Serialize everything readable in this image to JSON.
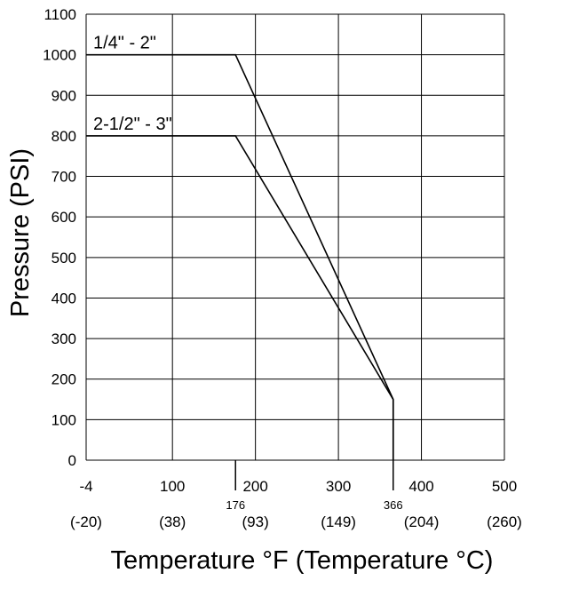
{
  "chart_data": {
    "type": "line",
    "xlabel": "Temperature °F (Temperature °C)",
    "ylabel": "Pressure (PSI)",
    "xlim": [
      -4,
      500
    ],
    "ylim": [
      0,
      1100
    ],
    "grid": true,
    "x_ticks": [
      {
        "value": -4,
        "label": "-4",
        "sub": "(-20)"
      },
      {
        "value": 100,
        "label": "100",
        "sub": "(38)"
      },
      {
        "value": 200,
        "label": "200",
        "sub": "(93)"
      },
      {
        "value": 300,
        "label": "300",
        "sub": "(149)"
      },
      {
        "value": 400,
        "label": "400",
        "sub": "(204)"
      },
      {
        "value": 500,
        "label": "500",
        "sub": "(260)"
      }
    ],
    "y_ticks": [
      {
        "value": 0,
        "label": "0"
      },
      {
        "value": 100,
        "label": "100"
      },
      {
        "value": 200,
        "label": "200"
      },
      {
        "value": 300,
        "label": "300"
      },
      {
        "value": 400,
        "label": "400"
      },
      {
        "value": 500,
        "label": "500"
      },
      {
        "value": 600,
        "label": "600"
      },
      {
        "value": 700,
        "label": "700"
      },
      {
        "value": 800,
        "label": "800"
      },
      {
        "value": 900,
        "label": "900"
      },
      {
        "value": 1000,
        "label": "1000"
      },
      {
        "value": 1100,
        "label": "1100"
      }
    ],
    "markers": [
      {
        "value": 176,
        "label": "176"
      },
      {
        "value": 366,
        "label": "366"
      }
    ],
    "series": [
      {
        "name": "1/4\" - 2\"",
        "points": [
          [
            -4,
            1000
          ],
          [
            176,
            1000
          ],
          [
            366,
            150
          ],
          [
            366,
            0
          ]
        ]
      },
      {
        "name": "2-1/2\" - 3\"",
        "points": [
          [
            -4,
            800
          ],
          [
            176,
            800
          ],
          [
            366,
            150
          ],
          [
            366,
            0
          ]
        ]
      }
    ]
  }
}
